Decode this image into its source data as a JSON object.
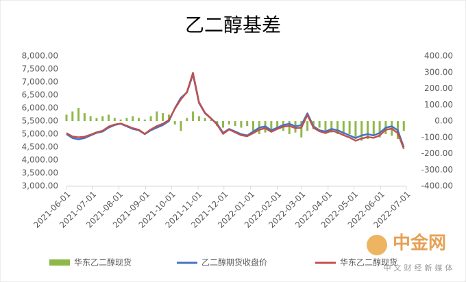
{
  "chart_data": {
    "type": "bar_line_dual",
    "title": "乙二醇基差",
    "x": [
      "2021-06-01",
      "2021-06-08",
      "2021-06-15",
      "2021-06-22",
      "2021-06-29",
      "2021-07-06",
      "2021-07-13",
      "2021-07-20",
      "2021-07-27",
      "2021-08-03",
      "2021-08-10",
      "2021-08-17",
      "2021-08-24",
      "2021-08-31",
      "2021-09-07",
      "2021-09-14",
      "2021-09-21",
      "2021-09-28",
      "2021-10-05",
      "2021-10-12",
      "2021-10-19",
      "2021-10-26",
      "2021-11-02",
      "2021-11-09",
      "2021-11-16",
      "2021-11-23",
      "2021-11-30",
      "2021-12-07",
      "2021-12-14",
      "2021-12-21",
      "2021-12-28",
      "2022-01-04",
      "2022-01-11",
      "2022-01-18",
      "2022-01-25",
      "2022-02-01",
      "2022-02-08",
      "2022-02-15",
      "2022-02-22",
      "2022-03-01",
      "2022-03-08",
      "2022-03-15",
      "2022-03-22",
      "2022-03-29",
      "2022-04-05",
      "2022-04-12",
      "2022-04-19",
      "2022-04-26",
      "2022-05-03",
      "2022-05-10",
      "2022-05-17",
      "2022-05-24",
      "2022-05-31",
      "2022-06-07",
      "2022-06-14",
      "2022-06-21",
      "2022-06-28"
    ],
    "series": [
      {
        "name": "华东乙二醇现货",
        "kind": "bar",
        "axis": "y2",
        "color": "#8fb84a",
        "values": [
          40,
          60,
          80,
          50,
          30,
          20,
          30,
          40,
          20,
          10,
          20,
          30,
          20,
          10,
          30,
          60,
          50,
          40,
          -20,
          -60,
          20,
          60,
          30,
          20,
          10,
          -30,
          -40,
          -20,
          -30,
          -40,
          -30,
          -60,
          -80,
          -70,
          -60,
          -50,
          -60,
          -80,
          -70,
          -100,
          -60,
          -50,
          -40,
          -60,
          -70,
          -80,
          -90,
          -80,
          -100,
          -120,
          -110,
          -90,
          -100,
          -80,
          -90,
          -110,
          -60
        ]
      },
      {
        "name": "乙二醇期货收盘价",
        "kind": "line",
        "color": "#4472c4",
        "values": [
          5000,
          4850,
          4800,
          4850,
          4950,
          5050,
          5100,
          5250,
          5350,
          5400,
          5300,
          5200,
          5150,
          5000,
          5150,
          5250,
          5350,
          5500,
          6000,
          6400,
          6600,
          7300,
          6200,
          5800,
          5600,
          5400,
          5050,
          5200,
          5100,
          5000,
          4950,
          5100,
          5250,
          5300,
          5150,
          5250,
          5350,
          5400,
          5300,
          5350,
          5800,
          5300,
          5150,
          5100,
          5200,
          5150,
          5050,
          4950,
          4850,
          4950,
          5000,
          4950,
          5050,
          5250,
          5300,
          5150,
          4500
        ]
      },
      {
        "name": "华东乙二醇现货",
        "kind": "line",
        "color": "#c0504d",
        "values": [
          5040,
          4910,
          4880,
          4900,
          4980,
          5070,
          5130,
          5290,
          5370,
          5410,
          5320,
          5230,
          5170,
          5010,
          5180,
          5310,
          5400,
          5540,
          5980,
          6340,
          6620,
          7360,
          6230,
          5820,
          5610,
          5370,
          5010,
          5180,
          5070,
          4960,
          4920,
          5040,
          5170,
          5230,
          5090,
          5200,
          5290,
          5320,
          5230,
          5250,
          5740,
          5250,
          5110,
          5040,
          5130,
          5070,
          4960,
          4870,
          4750,
          4830,
          4890,
          4860,
          4950,
          5170,
          5210,
          5040,
          4440
        ]
      }
    ],
    "xlim": [
      "2021-06-01",
      "2022-07-01"
    ],
    "xticks": [
      "2021-06-01",
      "2021-07-01",
      "2021-08-01",
      "2021-09-01",
      "2021-10-01",
      "2021-11-01",
      "2021-12-01",
      "2022-01-01",
      "2022-02-01",
      "2022-03-01",
      "2022-04-01",
      "2022-05-01",
      "2022-06-01",
      "2022-07-01"
    ],
    "ylim": [
      3000,
      8000
    ],
    "yticks": [
      {
        "value": 3000,
        "label": "3,000.00"
      },
      {
        "value": 3500,
        "label": "3,500.00"
      },
      {
        "value": 4000,
        "label": "4,000.00"
      },
      {
        "value": 4500,
        "label": "4,500.00"
      },
      {
        "value": 5000,
        "label": "5,000.00"
      },
      {
        "value": 5500,
        "label": "5,500.00"
      },
      {
        "value": 6000,
        "label": "6,000.00"
      },
      {
        "value": 6500,
        "label": "6,500.00"
      },
      {
        "value": 7000,
        "label": "7,000.00"
      },
      {
        "value": 7500,
        "label": "7,500.00"
      },
      {
        "value": 8000,
        "label": "8,000.00"
      }
    ],
    "y2lim": [
      -400,
      400
    ],
    "y2ticks": [
      {
        "value": -400,
        "label": "-400.00"
      },
      {
        "value": -300,
        "label": "-300.00"
      },
      {
        "value": -200,
        "label": "-200.00"
      },
      {
        "value": -100,
        "label": "-100.00"
      },
      {
        "value": 0,
        "label": "0.00"
      },
      {
        "value": 100,
        "label": "100.00"
      },
      {
        "value": 200,
        "label": "200.00"
      },
      {
        "value": 300,
        "label": "300.00"
      },
      {
        "value": 400,
        "label": "400.00"
      }
    ],
    "legend": "bottom",
    "watermark": {
      "brand": "中金网",
      "slogan": "中文财经新媒体"
    }
  }
}
